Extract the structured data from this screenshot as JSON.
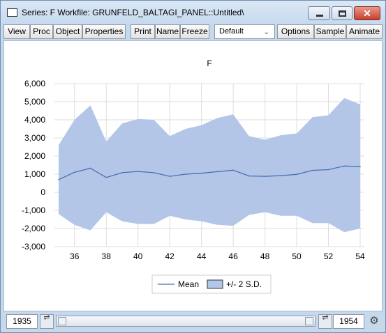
{
  "window": {
    "title": "Series: F   Workfile: GRUNFELD_BALTAGI_PANEL::Untitled\\"
  },
  "toolbar": {
    "view": "View",
    "proc": "Proc",
    "object": "Object",
    "properties": "Properties",
    "print": "Print",
    "name": "Name",
    "freeze": "Freeze",
    "dropdown_value": "Default",
    "options": "Options",
    "sample": "Sample",
    "animate": "Animate"
  },
  "statusbar": {
    "start": "1935",
    "end": "1954"
  },
  "chart_data": {
    "type": "area",
    "title": "F",
    "xlabel": "",
    "ylabel": "",
    "x": [
      1935,
      1936,
      1937,
      1938,
      1939,
      1940,
      1941,
      1942,
      1943,
      1944,
      1945,
      1946,
      1947,
      1948,
      1949,
      1950,
      1951,
      1952,
      1953,
      1954
    ],
    "xticks": [
      1936,
      1938,
      1940,
      1942,
      1944,
      1946,
      1948,
      1950,
      1952,
      1954
    ],
    "xtick_labels": [
      "36",
      "38",
      "40",
      "42",
      "44",
      "46",
      "48",
      "50",
      "52",
      "54"
    ],
    "ylim": [
      -3000,
      6000
    ],
    "yticks": [
      -3000,
      -2000,
      -1000,
      0,
      1000,
      2000,
      3000,
      4000,
      5000,
      6000
    ],
    "ytick_labels": [
      "-3,000",
      "-2,000",
      "-1,000",
      "0",
      "1,000",
      "2,000",
      "3,000",
      "4,000",
      "5,000",
      "6,000"
    ],
    "grid": true,
    "legend_position": "bottom",
    "series": [
      {
        "name": "Mean",
        "kind": "line",
        "color": "#4a6fb5",
        "values": [
          700,
          1100,
          1330,
          820,
          1080,
          1150,
          1080,
          880,
          1000,
          1050,
          1140,
          1220,
          900,
          880,
          920,
          990,
          1210,
          1250,
          1450,
          1410
        ]
      },
      {
        "name": "+/- 2 S.D.",
        "kind": "band",
        "color": "#b3c6e7",
        "upper": [
          2600,
          4000,
          4800,
          2800,
          3800,
          4050,
          4000,
          3100,
          3500,
          3700,
          4100,
          4300,
          3100,
          2900,
          3150,
          3250,
          4150,
          4250,
          5200,
          4850
        ],
        "lower": [
          -1200,
          -1800,
          -2100,
          -1100,
          -1600,
          -1750,
          -1750,
          -1300,
          -1500,
          -1600,
          -1800,
          -1850,
          -1250,
          -1100,
          -1300,
          -1300,
          -1700,
          -1700,
          -2200,
          -2000
        ]
      }
    ]
  }
}
